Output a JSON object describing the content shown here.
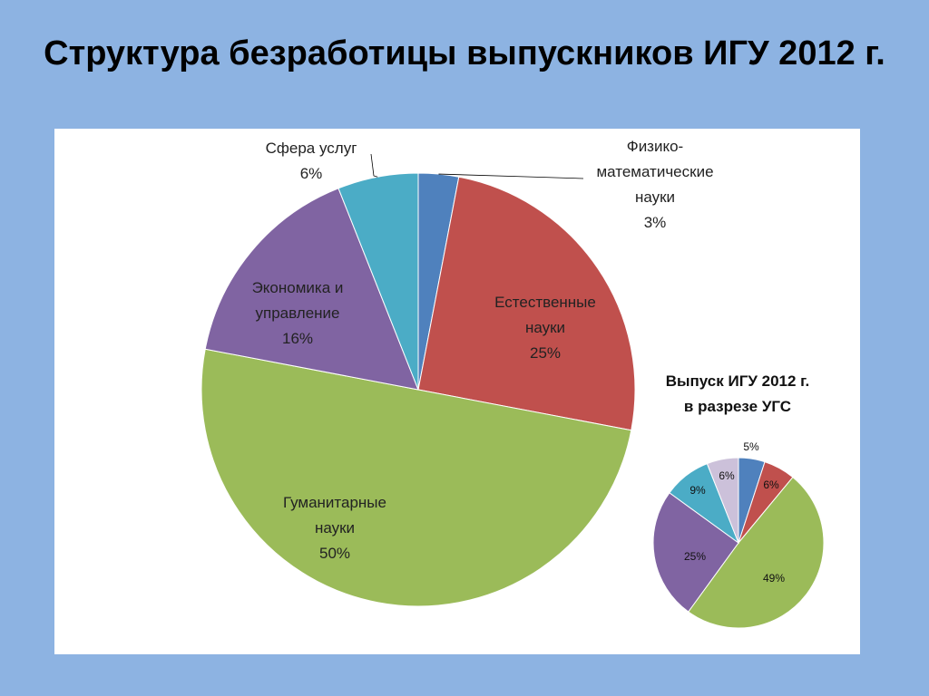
{
  "slide": {
    "title": "Структура безработицы выпускников ИГУ 2012 г."
  },
  "chart_data": [
    {
      "type": "pie",
      "title": "",
      "slices": [
        {
          "label": "Физико-математические науки",
          "value": 3,
          "display": "3%",
          "label_lines": [
            "Физико-",
            "математические",
            "науки",
            "3%"
          ],
          "color": "#4f81bd"
        },
        {
          "label": "Естественные науки",
          "value": 25,
          "display": "25%",
          "label_lines": [
            "Естественные",
            "науки",
            "25%"
          ],
          "color": "#c0504d"
        },
        {
          "label": "Гуманитарные науки",
          "value": 50,
          "display": "50%",
          "label_lines": [
            "Гуманитарные",
            "науки",
            "50%"
          ],
          "color": "#9bbb59"
        },
        {
          "label": "Экономика и управление",
          "value": 16,
          "display": "16%",
          "label_lines": [
            "Экономика и",
            "управление",
            "16%"
          ],
          "color": "#8064a2"
        },
        {
          "label": "Сфера услуг",
          "value": 6,
          "display": "6%",
          "label_lines": [
            "Сфера услуг",
            "6%"
          ],
          "color": "#4bacc6"
        }
      ]
    },
    {
      "type": "pie",
      "title": "Выпуск ИГУ 2012 г. в разрезе УГС",
      "title_lines": [
        "Выпуск ИГУ 2012 г.",
        "в разрезе УГС"
      ],
      "slices": [
        {
          "value": 5,
          "display": "5%",
          "color": "#4f81bd"
        },
        {
          "value": 6,
          "display": "6%",
          "color": "#c0504d"
        },
        {
          "value": 49,
          "display": "49%",
          "color": "#9bbb59"
        },
        {
          "value": 25,
          "display": "25%",
          "color": "#8064a2"
        },
        {
          "value": 9,
          "display": "9%",
          "color": "#4bacc6"
        },
        {
          "value": 6,
          "display": "6%",
          "color": "#ccc1da"
        }
      ]
    }
  ]
}
